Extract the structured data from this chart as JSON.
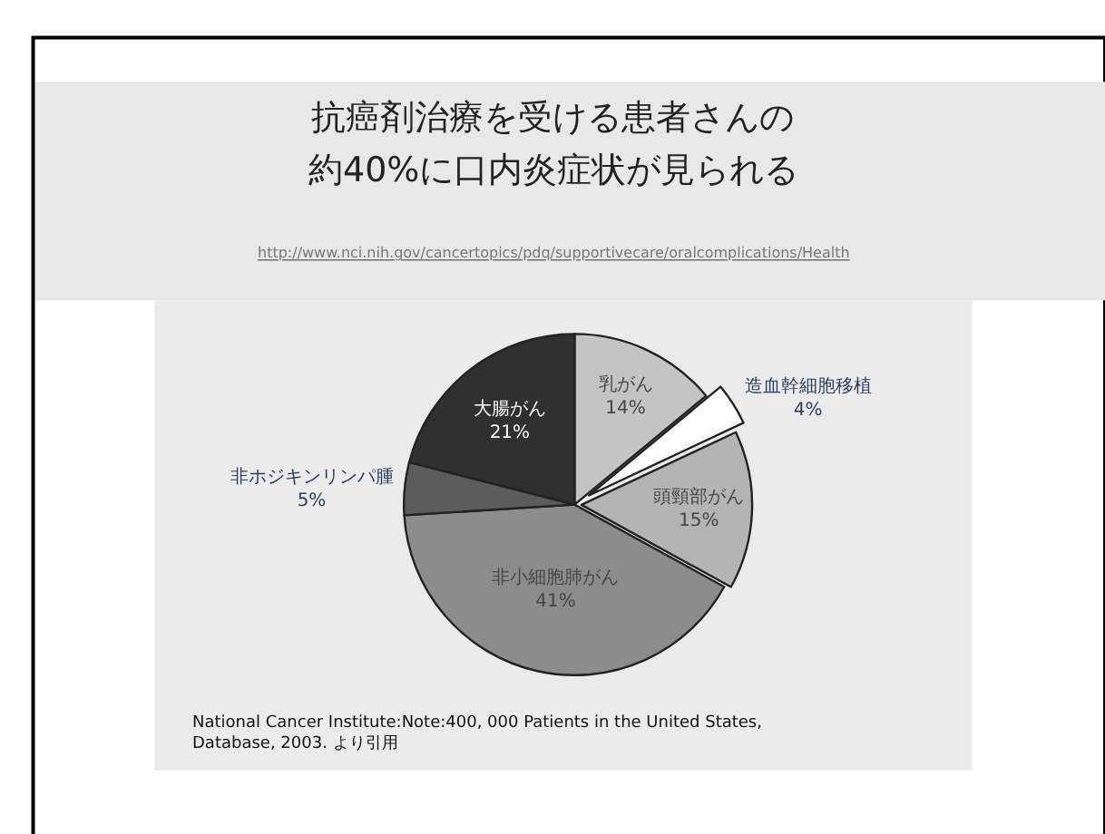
{
  "chart_data": {
    "type": "pie",
    "title": "抗癌剤治療を受ける患者さんの",
    "subtitle": "約40%に口内炎症状が見られる",
    "categories": [
      "乳がん",
      "造血幹細胞移植",
      "頭頸部がん",
      "非小細胞肺がん",
      "非ホジキンリンパ腫",
      "大腸がん"
    ],
    "values": [
      14,
      4,
      15,
      41,
      5,
      21
    ],
    "value_labels": [
      "14%",
      "4%",
      "15%",
      "41%",
      "5%",
      "21%"
    ],
    "colors": [
      "#c4c4c4",
      "#ffffff",
      "#b4b4b4",
      "#8c8c8c",
      "#5c5c5c",
      "#303030"
    ],
    "annotations": [
      "http://www.nci.nih.gov/cancertopics/pdq/supportivecare/oralcomplications/Health",
      "National Cancer Institute:Note:400, 000 Patients in the United States,\nDatabase, 2003. より引用"
    ],
    "legend": false
  }
}
